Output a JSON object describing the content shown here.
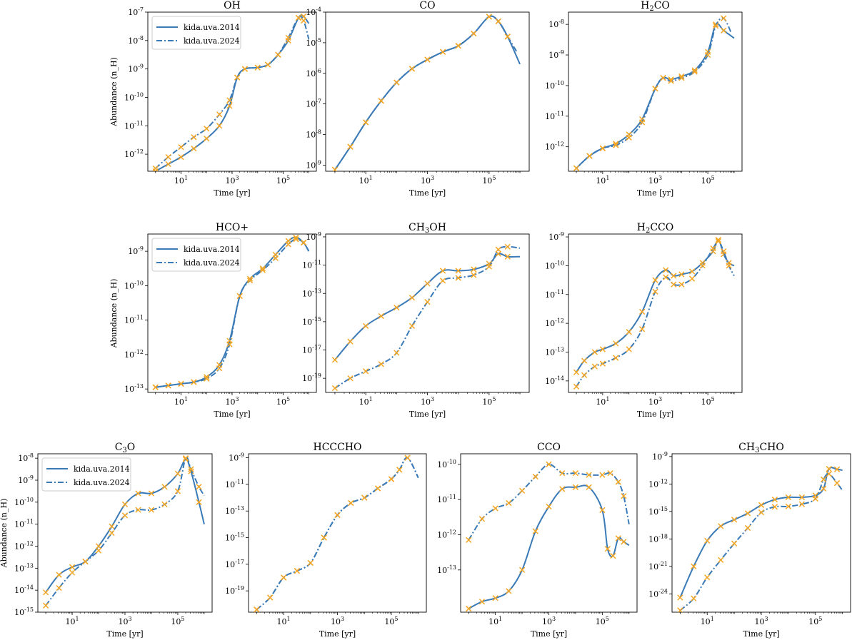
{
  "colors": {
    "line": "#3a7ab7",
    "marker": "#f5a623",
    "axis": "#000000"
  },
  "chart_data": [
    {
      "type": "line",
      "title": "OH",
      "title_sub": "",
      "title_tail": "",
      "xlabel": "Time [yr]",
      "ylabel": "Abundance (n_H)",
      "x_ticks": [
        1,
        3,
        5
      ],
      "y_ticks": [
        -12,
        -11,
        -10,
        -9,
        -8,
        -7
      ],
      "ylim": [
        -12.6,
        -7
      ],
      "legend": [
        "kida.uva.2014",
        "kida.uva.2024"
      ],
      "series": [
        {
          "name": "kida.uva.2014",
          "style": "solid",
          "logx": [
            0,
            0.5,
            1,
            1.5,
            2,
            2.5,
            2.9,
            3.2,
            3.5,
            4,
            4.4,
            4.8,
            5.2,
            5.6,
            5.8,
            6.0
          ],
          "logy": [
            -12.6,
            -12.35,
            -12.1,
            -11.8,
            -11.45,
            -11.0,
            -10.3,
            -9.3,
            -9.0,
            -8.95,
            -8.85,
            -8.5,
            -8.0,
            -7.2,
            -7.15,
            -7.4
          ]
        },
        {
          "name": "kida.uva.2024",
          "style": "dashdot",
          "logx": [
            0,
            0.5,
            1,
            1.5,
            2,
            2.5,
            2.9,
            3.2,
            3.5,
            4,
            4.4,
            4.8,
            5.2,
            5.6,
            5.8,
            6.0
          ],
          "logy": [
            -12.5,
            -12.1,
            -11.75,
            -11.4,
            -11.1,
            -10.6,
            -10.1,
            -9.3,
            -9.0,
            -8.95,
            -8.85,
            -8.5,
            -7.9,
            -7.2,
            -7.3,
            -7.95
          ]
        }
      ]
    },
    {
      "type": "line",
      "title": "CO",
      "title_sub": "",
      "title_tail": "",
      "xlabel": "Time [yr]",
      "ylabel": "",
      "x_ticks": [
        1,
        3,
        5
      ],
      "y_ticks": [
        -9,
        -8,
        -7,
        -6,
        -5,
        -4
      ],
      "ylim": [
        -9.2,
        -4
      ],
      "legend": [],
      "series": [
        {
          "name": "kida.uva.2014",
          "style": "solid",
          "logx": [
            0,
            0.5,
            1,
            1.5,
            2,
            2.5,
            3,
            3.5,
            4,
            4.5,
            5,
            5.3,
            5.6,
            6.0
          ],
          "logy": [
            -9.15,
            -8.4,
            -7.6,
            -6.9,
            -6.3,
            -5.85,
            -5.55,
            -5.3,
            -5.1,
            -4.7,
            -4.15,
            -4.3,
            -4.8,
            -5.7
          ]
        },
        {
          "name": "kida.uva.2024",
          "style": "dashdot",
          "logx": [
            0,
            0.5,
            1,
            1.5,
            2,
            2.5,
            3,
            3.5,
            4,
            4.5,
            5,
            5.3,
            5.6,
            5.9
          ],
          "logy": [
            -9.15,
            -8.4,
            -7.6,
            -6.9,
            -6.3,
            -5.85,
            -5.55,
            -5.3,
            -5.1,
            -4.7,
            -4.15,
            -4.3,
            -4.8,
            -5.3
          ]
        }
      ]
    },
    {
      "type": "line",
      "title": "H",
      "title_sub": "2",
      "title_tail": "CO",
      "xlabel": "Time [yr]",
      "ylabel": "",
      "x_ticks": [
        1,
        3,
        5
      ],
      "y_ticks": [
        -12,
        -11,
        -10,
        -9,
        -8
      ],
      "ylim": [
        -12.8,
        -7.6
      ],
      "legend": [],
      "series": [
        {
          "name": "kida.uva.2014",
          "style": "solid",
          "logx": [
            0,
            0.5,
            1,
            1.5,
            2,
            2.5,
            3,
            3.3,
            3.6,
            4,
            4.5,
            5,
            5.3,
            5.6,
            6.0
          ],
          "logy": [
            -12.7,
            -12.3,
            -12.05,
            -11.9,
            -11.6,
            -11.1,
            -10.1,
            -9.75,
            -9.8,
            -9.7,
            -9.5,
            -8.9,
            -8.0,
            -8.2,
            -8.45
          ]
        },
        {
          "name": "kida.uva.2024",
          "style": "dashdot",
          "logx": [
            0,
            0.5,
            1,
            1.5,
            2,
            2.5,
            3,
            3.3,
            3.6,
            4,
            4.5,
            5,
            5.3,
            5.6,
            5.9
          ],
          "logy": [
            -12.7,
            -12.3,
            -12.05,
            -11.95,
            -11.7,
            -11.2,
            -10.1,
            -9.75,
            -9.85,
            -9.75,
            -9.55,
            -9.0,
            -8.05,
            -7.8,
            -8.3
          ]
        }
      ]
    },
    {
      "type": "line",
      "title": "HCO+",
      "title_sub": "",
      "title_tail": "",
      "xlabel": "Time [yr]",
      "ylabel": "Abundance (n_H)",
      "x_ticks": [
        1,
        3,
        5
      ],
      "y_ticks": [
        -13,
        -12,
        -11,
        -10,
        -9
      ],
      "ylim": [
        -13.1,
        -8.5
      ],
      "legend": [
        "kida.uva.2014",
        "kida.uva.2024"
      ],
      "series": [
        {
          "name": "kida.uva.2014",
          "style": "solid",
          "logx": [
            0,
            0.5,
            1,
            1.5,
            2,
            2.5,
            2.9,
            3.3,
            3.7,
            4.2,
            4.7,
            5.2,
            5.5,
            5.8,
            6.0
          ],
          "logy": [
            -12.95,
            -12.9,
            -12.85,
            -12.8,
            -12.65,
            -12.3,
            -11.6,
            -10.3,
            -9.8,
            -9.5,
            -9.1,
            -8.7,
            -8.6,
            -8.75,
            -9.0
          ]
        },
        {
          "name": "kida.uva.2024",
          "style": "dashdot",
          "logx": [
            0,
            0.5,
            1,
            1.5,
            2,
            2.5,
            2.9,
            3.3,
            3.7,
            4.2,
            4.7,
            5.2,
            5.5,
            5.8,
            6.0
          ],
          "logy": [
            -12.95,
            -12.9,
            -12.85,
            -12.8,
            -12.7,
            -12.4,
            -11.7,
            -10.3,
            -9.85,
            -9.55,
            -9.2,
            -8.8,
            -8.65,
            -8.75,
            -9.0
          ]
        }
      ]
    },
    {
      "type": "line",
      "title": "CH",
      "title_sub": "3",
      "title_tail": "OH",
      "xlabel": "Time [yr]",
      "ylabel": "",
      "x_ticks": [
        1,
        3,
        5
      ],
      "y_ticks": [
        -19,
        -17,
        -15,
        -13,
        -11,
        -9
      ],
      "ylim": [
        -20,
        -8.8
      ],
      "legend": [],
      "series": [
        {
          "name": "kida.uva.2014",
          "style": "solid",
          "logx": [
            0,
            0.5,
            1,
            1.5,
            2,
            2.5,
            3,
            3.5,
            4,
            4.5,
            5,
            5.3,
            5.6,
            6.0
          ],
          "logy": [
            -17.7,
            -16.4,
            -15.3,
            -14.6,
            -14.0,
            -13.3,
            -12.3,
            -11.4,
            -11.4,
            -11.3,
            -10.9,
            -10.2,
            -10.4,
            -10.4
          ]
        },
        {
          "name": "kida.uva.2024",
          "style": "dashdot",
          "logx": [
            0,
            0.5,
            1,
            1.5,
            2,
            2.5,
            3,
            3.5,
            4,
            4.5,
            5,
            5.3,
            5.6,
            6.0
          ],
          "logy": [
            -19.7,
            -19.0,
            -18.5,
            -18.0,
            -17.2,
            -15.3,
            -13.6,
            -12.1,
            -11.9,
            -11.7,
            -11.1,
            -9.9,
            -9.7,
            -9.8
          ]
        }
      ]
    },
    {
      "type": "line",
      "title": "H",
      "title_sub": "2",
      "title_tail": "CCO",
      "xlabel": "Time [yr]",
      "ylabel": "",
      "x_ticks": [
        1,
        3,
        5
      ],
      "y_ticks": [
        -14,
        -13,
        -12,
        -11,
        -10,
        -9
      ],
      "ylim": [
        -14.4,
        -8.9
      ],
      "legend": [],
      "series": [
        {
          "name": "kida.uva.2014",
          "style": "solid",
          "logx": [
            0,
            0.3,
            0.7,
            1,
            1.5,
            2,
            2.5,
            3,
            3.4,
            3.7,
            4,
            4.4,
            4.8,
            5.2,
            5.4,
            5.6,
            5.8,
            6.0
          ],
          "logy": [
            -13.7,
            -13.3,
            -13.0,
            -12.9,
            -12.7,
            -12.3,
            -11.6,
            -10.5,
            -10.15,
            -10.35,
            -10.3,
            -10.2,
            -9.9,
            -9.5,
            -9.1,
            -9.6,
            -9.9,
            -10.0
          ]
        },
        {
          "name": "kida.uva.2024",
          "style": "dashdot",
          "logx": [
            0,
            0.3,
            0.7,
            1,
            1.5,
            2,
            2.5,
            3,
            3.4,
            3.7,
            4,
            4.4,
            4.8,
            5.2,
            5.4,
            5.6,
            5.8,
            6.0
          ],
          "logy": [
            -14.2,
            -13.8,
            -13.5,
            -13.4,
            -13.2,
            -12.9,
            -12.2,
            -10.9,
            -10.4,
            -10.65,
            -10.65,
            -10.45,
            -10.0,
            -9.4,
            -9.15,
            -9.5,
            -10.0,
            -10.35
          ]
        }
      ]
    },
    {
      "type": "line",
      "title": "C",
      "title_sub": "3",
      "title_tail": "O",
      "xlabel": "Time [yr]",
      "ylabel": "Abundance (n_H)",
      "x_ticks": [
        1,
        3,
        5
      ],
      "y_ticks": [
        -15,
        -14,
        -13,
        -12,
        -11,
        -10,
        -9,
        -8
      ],
      "ylim": [
        -15,
        -7.8
      ],
      "legend": [
        "kida.uva.2014",
        "kida.uva.2024"
      ],
      "series": [
        {
          "name": "kida.uva.2014",
          "style": "solid",
          "logx": [
            0,
            0.5,
            1,
            1.5,
            2,
            2.5,
            3,
            3.5,
            4,
            4.5,
            5,
            5.3,
            5.5,
            5.8,
            6.0
          ],
          "logy": [
            -14.1,
            -13.3,
            -12.95,
            -12.7,
            -12.0,
            -11.1,
            -10.1,
            -9.6,
            -9.6,
            -9.3,
            -8.7,
            -8.05,
            -8.6,
            -10.0,
            -11.0
          ]
        },
        {
          "name": "kida.uva.2024",
          "style": "dashdot",
          "logx": [
            0,
            0.5,
            1,
            1.5,
            2,
            2.5,
            3,
            3.5,
            4,
            4.5,
            5,
            5.3,
            5.5,
            5.8,
            6.0
          ],
          "logy": [
            -14.7,
            -13.9,
            -13.2,
            -12.7,
            -12.2,
            -11.4,
            -10.6,
            -10.35,
            -10.35,
            -10.1,
            -9.5,
            -8.0,
            -8.5,
            -9.3,
            -9.7
          ]
        }
      ]
    },
    {
      "type": "line",
      "title": "HCCCHO",
      "title_sub": "",
      "title_tail": "",
      "xlabel": "Time [yr]",
      "ylabel": "",
      "x_ticks": [
        1,
        3,
        5
      ],
      "y_ticks": [
        -19,
        -17,
        -15,
        -13,
        -11,
        -9
      ],
      "ylim": [
        -20.6,
        -8.7
      ],
      "legend": [],
      "series": [
        {
          "name": "kida.uva.2014",
          "style": "dashdot",
          "logx": [
            0,
            0.5,
            1,
            1.5,
            2,
            2.5,
            3,
            3.5,
            4,
            4.5,
            5,
            5.3,
            5.6,
            6.0
          ],
          "logy": [
            -20.4,
            -19.5,
            -18.0,
            -17.5,
            -16.9,
            -15.0,
            -13.3,
            -12.4,
            -12.0,
            -11.3,
            -10.6,
            -9.9,
            -9.0,
            -10.5
          ]
        },
        {
          "name": "kida.uva.2024",
          "style": "dashdot",
          "logx": [
            0,
            0.5,
            1,
            1.5,
            2,
            2.5,
            3,
            3.5,
            4,
            4.5,
            5,
            5.3,
            5.6,
            6.0
          ],
          "logy": [
            -20.4,
            -19.5,
            -18.0,
            -17.5,
            -16.9,
            -15.0,
            -13.3,
            -12.4,
            -12.0,
            -11.3,
            -10.6,
            -9.9,
            -9.0,
            -10.5
          ]
        }
      ]
    },
    {
      "type": "line",
      "title": "CCO",
      "title_sub": "",
      "title_tail": "",
      "xlabel": "Time [yr]",
      "ylabel": "",
      "x_ticks": [
        1,
        3,
        5
      ],
      "y_ticks": [
        -13,
        -12,
        -11,
        -10
      ],
      "ylim": [
        -14.2,
        -9.7
      ],
      "legend": [],
      "series": [
        {
          "name": "kida.uva.2014",
          "style": "solid",
          "logx": [
            0,
            0.5,
            1,
            1.5,
            2,
            2.5,
            3,
            3.5,
            4,
            4.5,
            5,
            5.2,
            5.4,
            5.6,
            5.8,
            6.0
          ],
          "logy": [
            -14.1,
            -13.9,
            -13.8,
            -13.6,
            -13.0,
            -11.9,
            -11.2,
            -10.7,
            -10.65,
            -10.65,
            -11.3,
            -12.4,
            -12.6,
            -12.1,
            -12.2,
            -12.3
          ]
        },
        {
          "name": "kida.uva.2024",
          "style": "dashdot",
          "logx": [
            0,
            0.5,
            1,
            1.5,
            2,
            2.5,
            3,
            3.5,
            4,
            4.5,
            5,
            5.3,
            5.6,
            5.8,
            6.0
          ],
          "logy": [
            -12.15,
            -11.55,
            -11.25,
            -11.1,
            -10.75,
            -10.35,
            -10.0,
            -10.25,
            -10.25,
            -10.3,
            -10.3,
            -10.25,
            -10.5,
            -10.9,
            -11.7
          ]
        }
      ]
    },
    {
      "type": "line",
      "title": "CH",
      "title_sub": "3",
      "title_tail": "CHO",
      "xlabel": "Time [yr]",
      "ylabel": "",
      "x_ticks": [
        1,
        3,
        5
      ],
      "y_ticks": [
        -24,
        -21,
        -18,
        -15,
        -12,
        -9
      ],
      "ylim": [
        -26,
        -8.7
      ],
      "legend": [],
      "series": [
        {
          "name": "kida.uva.2014",
          "style": "solid",
          "logx": [
            0,
            0.5,
            1,
            1.5,
            2,
            2.5,
            3,
            3.5,
            4,
            4.5,
            5,
            5.3,
            5.5,
            5.8,
            6.0
          ],
          "logy": [
            -24.4,
            -21.0,
            -18.2,
            -16.6,
            -15.9,
            -15.2,
            -14.3,
            -13.7,
            -13.45,
            -13.45,
            -13.25,
            -12.5,
            -10.35,
            -10.4,
            -10.5
          ]
        },
        {
          "name": "kida.uva.2024",
          "style": "dashdot",
          "logx": [
            0,
            0.5,
            1,
            1.5,
            2,
            2.5,
            3,
            3.5,
            4,
            4.5,
            5,
            5.3,
            5.5,
            5.8,
            6.0
          ],
          "logy": [
            -25.8,
            -24.5,
            -22.2,
            -20.3,
            -18.5,
            -16.8,
            -15.1,
            -14.5,
            -14.45,
            -14.2,
            -13.6,
            -11.5,
            -10.9,
            -11.9,
            -12.7
          ]
        }
      ]
    }
  ]
}
